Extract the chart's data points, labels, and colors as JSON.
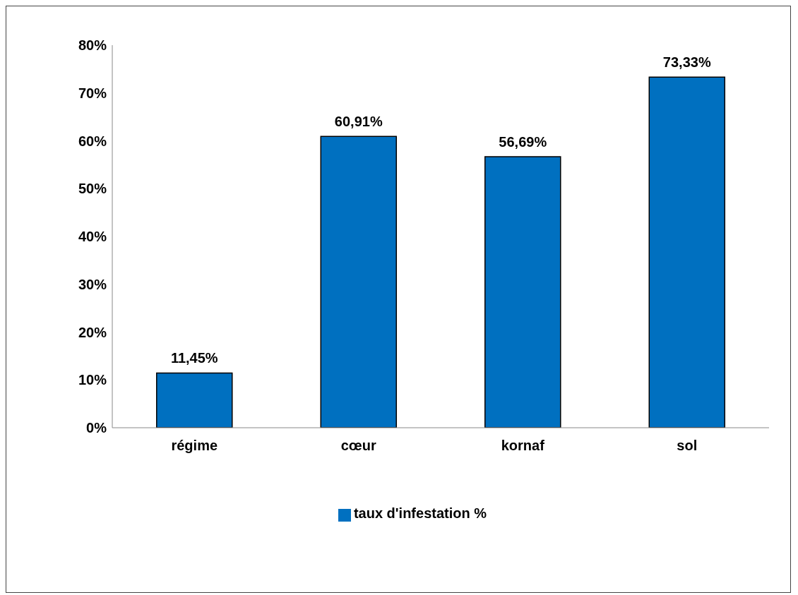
{
  "chart_data": {
    "type": "bar",
    "categories": [
      "régime",
      "cœur",
      "kornaf",
      "sol"
    ],
    "series": [
      {
        "name": "taux d'infestation %",
        "color": "#0070c0",
        "values": [
          11.45,
          60.91,
          56.69,
          73.33
        ]
      }
    ],
    "value_labels": [
      "11,45%",
      "60,91%",
      "56,69%",
      "73,33%"
    ],
    "ylim": [
      0,
      80
    ],
    "yticks": [
      {
        "value": 0,
        "label": "0%"
      },
      {
        "value": 10,
        "label": "10%"
      },
      {
        "value": 20,
        "label": "20%"
      },
      {
        "value": 30,
        "label": "30%"
      },
      {
        "value": 40,
        "label": "40%"
      },
      {
        "value": 50,
        "label": "50%"
      },
      {
        "value": 60,
        "label": "60%"
      },
      {
        "value": 70,
        "label": "70%"
      },
      {
        "value": 80,
        "label": "80%"
      }
    ],
    "grid": false,
    "legend": "bottom"
  }
}
